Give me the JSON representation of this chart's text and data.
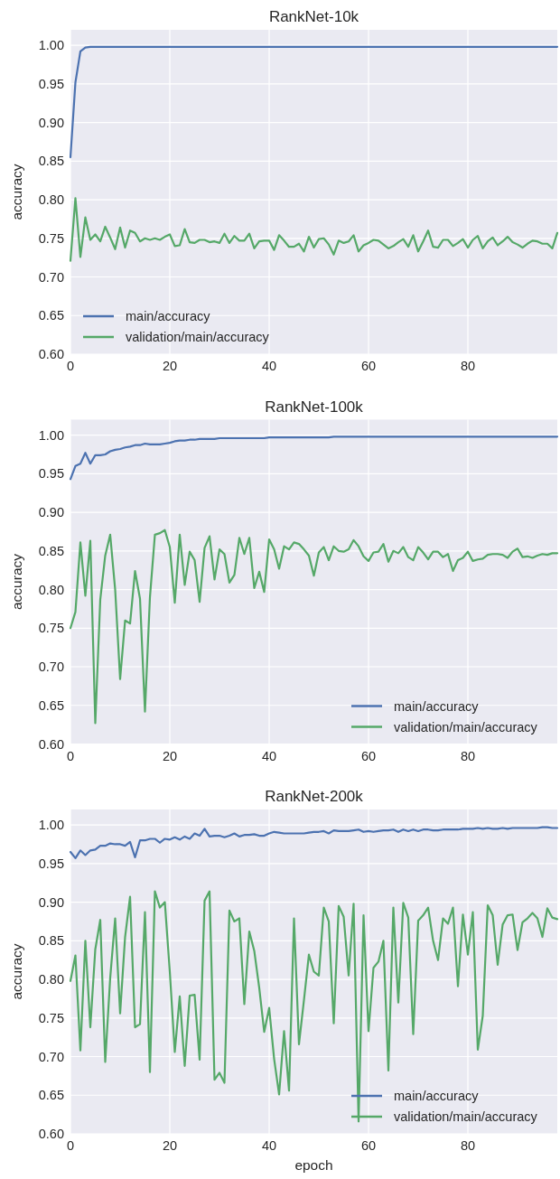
{
  "chart_data": [
    {
      "type": "line",
      "title": "RankNet-10k",
      "ylabel": "accuracy",
      "x": [
        0,
        1,
        2,
        3,
        4,
        5,
        6,
        7,
        8,
        9,
        10,
        11,
        12,
        13,
        14,
        15,
        16,
        17,
        18,
        19,
        20,
        21,
        22,
        23,
        24,
        25,
        26,
        27,
        28,
        29,
        30,
        31,
        32,
        33,
        34,
        35,
        36,
        37,
        38,
        39,
        40,
        41,
        42,
        43,
        44,
        45,
        46,
        47,
        48,
        49,
        50,
        51,
        52,
        53,
        54,
        55,
        56,
        57,
        58,
        59,
        60,
        61,
        62,
        63,
        64,
        65,
        66,
        67,
        68,
        69,
        70,
        71,
        72,
        73,
        74,
        75,
        76,
        77,
        78,
        79,
        80,
        81,
        82,
        83,
        84,
        85,
        86,
        87,
        88,
        89,
        90,
        91,
        92,
        93,
        94,
        95,
        96,
        97,
        98
      ],
      "xlim": [
        0,
        98
      ],
      "xticks": [
        0,
        20,
        40,
        60,
        80
      ],
      "ylim": [
        0.6,
        1.02
      ],
      "yticks": [
        {
          "value": 0.6,
          "label": "0.60"
        },
        {
          "value": 0.65,
          "label": "0.65"
        },
        {
          "value": 0.7,
          "label": "0.70"
        },
        {
          "value": 0.75,
          "label": "0.75"
        },
        {
          "value": 0.8,
          "label": "0.80"
        },
        {
          "value": 0.85,
          "label": "0.85"
        },
        {
          "value": 0.9,
          "label": "0.90"
        },
        {
          "value": 0.95,
          "label": "0.95"
        },
        {
          "value": 1,
          "label": "1.00"
        }
      ],
      "grid": true,
      "legend": "bottom left",
      "series": [
        {
          "name": "main/accuracy",
          "color": "#4c72b0",
          "values": [
            0.855,
            0.952,
            0.992,
            0.997,
            0.998,
            0.998,
            0.998,
            0.998,
            0.998,
            0.998,
            0.998,
            0.998,
            0.998,
            0.998,
            0.998,
            0.998,
            0.998,
            0.998,
            0.998,
            0.998,
            0.998,
            0.998,
            0.998,
            0.998,
            0.998,
            0.998,
            0.998,
            0.998,
            0.998,
            0.998,
            0.998,
            0.998,
            0.998,
            0.998,
            0.998,
            0.998,
            0.998,
            0.998,
            0.998,
            0.998,
            0.998,
            0.998,
            0.998,
            0.998,
            0.998,
            0.998,
            0.998,
            0.998,
            0.998,
            0.998,
            0.998,
            0.998,
            0.998,
            0.998,
            0.998,
            0.998,
            0.998,
            0.998,
            0.998,
            0.998,
            0.998,
            0.998,
            0.998,
            0.998,
            0.998,
            0.998,
            0.998,
            0.998,
            0.998,
            0.998,
            0.998,
            0.998,
            0.998,
            0.998,
            0.998,
            0.998,
            0.998,
            0.998,
            0.998,
            0.998,
            0.998,
            0.998,
            0.998,
            0.998,
            0.998,
            0.998,
            0.998,
            0.998,
            0.998,
            0.998,
            0.998,
            0.998,
            0.998,
            0.998,
            0.998,
            0.998,
            0.998,
            0.998,
            0.998
          ]
        },
        {
          "name": "validation/main/accuracy",
          "color": "#55a868",
          "values": [
            0.721,
            0.802,
            0.726,
            0.777,
            0.748,
            0.755,
            0.746,
            0.765,
            0.751,
            0.736,
            0.764,
            0.738,
            0.76,
            0.757,
            0.746,
            0.75,
            0.748,
            0.75,
            0.748,
            0.752,
            0.755,
            0.74,
            0.741,
            0.762,
            0.745,
            0.744,
            0.748,
            0.748,
            0.745,
            0.746,
            0.744,
            0.756,
            0.744,
            0.753,
            0.747,
            0.747,
            0.756,
            0.737,
            0.746,
            0.747,
            0.747,
            0.735,
            0.754,
            0.747,
            0.739,
            0.739,
            0.743,
            0.733,
            0.752,
            0.738,
            0.749,
            0.75,
            0.742,
            0.729,
            0.747,
            0.744,
            0.746,
            0.754,
            0.733,
            0.741,
            0.744,
            0.748,
            0.747,
            0.742,
            0.737,
            0.74,
            0.745,
            0.749,
            0.739,
            0.754,
            0.733,
            0.746,
            0.76,
            0.739,
            0.738,
            0.748,
            0.748,
            0.74,
            0.744,
            0.749,
            0.738,
            0.748,
            0.753,
            0.737,
            0.746,
            0.751,
            0.741,
            0.746,
            0.752,
            0.745,
            0.742,
            0.738,
            0.743,
            0.747,
            0.746,
            0.743,
            0.743,
            0.737,
            0.757
          ]
        }
      ]
    },
    {
      "type": "line",
      "title": "RankNet-100k",
      "ylabel": "accuracy",
      "x": [
        0,
        1,
        2,
        3,
        4,
        5,
        6,
        7,
        8,
        9,
        10,
        11,
        12,
        13,
        14,
        15,
        16,
        17,
        18,
        19,
        20,
        21,
        22,
        23,
        24,
        25,
        26,
        27,
        28,
        29,
        30,
        31,
        32,
        33,
        34,
        35,
        36,
        37,
        38,
        39,
        40,
        41,
        42,
        43,
        44,
        45,
        46,
        47,
        48,
        49,
        50,
        51,
        52,
        53,
        54,
        55,
        56,
        57,
        58,
        59,
        60,
        61,
        62,
        63,
        64,
        65,
        66,
        67,
        68,
        69,
        70,
        71,
        72,
        73,
        74,
        75,
        76,
        77,
        78,
        79,
        80,
        81,
        82,
        83,
        84,
        85,
        86,
        87,
        88,
        89,
        90,
        91,
        92,
        93,
        94,
        95,
        96,
        97,
        98
      ],
      "xlim": [
        0,
        98
      ],
      "xticks": [
        0,
        20,
        40,
        60,
        80
      ],
      "ylim": [
        0.6,
        1.02
      ],
      "yticks": [
        {
          "value": 0.6,
          "label": "0.60"
        },
        {
          "value": 0.65,
          "label": "0.65"
        },
        {
          "value": 0.7,
          "label": "0.70"
        },
        {
          "value": 0.75,
          "label": "0.75"
        },
        {
          "value": 0.8,
          "label": "0.80"
        },
        {
          "value": 0.85,
          "label": "0.85"
        },
        {
          "value": 0.9,
          "label": "0.90"
        },
        {
          "value": 0.95,
          "label": "0.95"
        },
        {
          "value": 1,
          "label": "1.00"
        }
      ],
      "grid": true,
      "legend": "bottom right",
      "series": [
        {
          "name": "main/accuracy",
          "color": "#4c72b0",
          "values": [
            0.943,
            0.96,
            0.963,
            0.977,
            0.963,
            0.974,
            0.974,
            0.975,
            0.979,
            0.981,
            0.982,
            0.984,
            0.985,
            0.987,
            0.987,
            0.989,
            0.988,
            0.988,
            0.988,
            0.989,
            0.99,
            0.992,
            0.993,
            0.993,
            0.994,
            0.994,
            0.995,
            0.995,
            0.995,
            0.995,
            0.996,
            0.996,
            0.996,
            0.996,
            0.996,
            0.996,
            0.996,
            0.996,
            0.996,
            0.996,
            0.997,
            0.997,
            0.997,
            0.997,
            0.997,
            0.997,
            0.997,
            0.997,
            0.997,
            0.997,
            0.997,
            0.997,
            0.997,
            0.998,
            0.998,
            0.998,
            0.998,
            0.998,
            0.998,
            0.998,
            0.998,
            0.998,
            0.998,
            0.998,
            0.998,
            0.998,
            0.998,
            0.998,
            0.998,
            0.998,
            0.998,
            0.998,
            0.998,
            0.998,
            0.998,
            0.998,
            0.998,
            0.998,
            0.998,
            0.998,
            0.998,
            0.998,
            0.998,
            0.998,
            0.998,
            0.998,
            0.998,
            0.998,
            0.998,
            0.998,
            0.998,
            0.998,
            0.998,
            0.998,
            0.998,
            0.998,
            0.998,
            0.998,
            0.998
          ]
        },
        {
          "name": "validation/main/accuracy",
          "color": "#55a868",
          "values": [
            0.75,
            0.771,
            0.861,
            0.792,
            0.863,
            0.627,
            0.787,
            0.844,
            0.871,
            0.8,
            0.684,
            0.76,
            0.756,
            0.824,
            0.788,
            0.642,
            0.79,
            0.871,
            0.873,
            0.877,
            0.855,
            0.783,
            0.871,
            0.806,
            0.849,
            0.838,
            0.784,
            0.854,
            0.869,
            0.813,
            0.852,
            0.846,
            0.809,
            0.819,
            0.867,
            0.846,
            0.867,
            0.802,
            0.823,
            0.797,
            0.865,
            0.852,
            0.827,
            0.856,
            0.852,
            0.861,
            0.859,
            0.852,
            0.844,
            0.818,
            0.848,
            0.855,
            0.838,
            0.856,
            0.85,
            0.849,
            0.852,
            0.864,
            0.856,
            0.843,
            0.837,
            0.848,
            0.849,
            0.859,
            0.836,
            0.85,
            0.847,
            0.855,
            0.842,
            0.838,
            0.855,
            0.848,
            0.839,
            0.849,
            0.849,
            0.842,
            0.846,
            0.824,
            0.838,
            0.841,
            0.849,
            0.837,
            0.839,
            0.84,
            0.845,
            0.846,
            0.846,
            0.845,
            0.841,
            0.849,
            0.853,
            0.842,
            0.843,
            0.841,
            0.844,
            0.846,
            0.845,
            0.847,
            0.847
          ]
        }
      ]
    },
    {
      "type": "line",
      "title": "RankNet-200k",
      "xlabel": "epoch",
      "ylabel": "accuracy",
      "x": [
        0,
        1,
        2,
        3,
        4,
        5,
        6,
        7,
        8,
        9,
        10,
        11,
        12,
        13,
        14,
        15,
        16,
        17,
        18,
        19,
        20,
        21,
        22,
        23,
        24,
        25,
        26,
        27,
        28,
        29,
        30,
        31,
        32,
        33,
        34,
        35,
        36,
        37,
        38,
        39,
        40,
        41,
        42,
        43,
        44,
        45,
        46,
        47,
        48,
        49,
        50,
        51,
        52,
        53,
        54,
        55,
        56,
        57,
        58,
        59,
        60,
        61,
        62,
        63,
        64,
        65,
        66,
        67,
        68,
        69,
        70,
        71,
        72,
        73,
        74,
        75,
        76,
        77,
        78,
        79,
        80,
        81,
        82,
        83,
        84,
        85,
        86,
        87,
        88,
        89,
        90,
        91,
        92,
        93,
        94,
        95,
        96,
        97,
        98
      ],
      "xlim": [
        0,
        98
      ],
      "xticks": [
        0,
        20,
        40,
        60,
        80
      ],
      "ylim": [
        0.6,
        1.02
      ],
      "yticks": [
        {
          "value": 0.6,
          "label": "0.60"
        },
        {
          "value": 0.65,
          "label": "0.65"
        },
        {
          "value": 0.7,
          "label": "0.70"
        },
        {
          "value": 0.75,
          "label": "0.75"
        },
        {
          "value": 0.8,
          "label": "0.80"
        },
        {
          "value": 0.85,
          "label": "0.85"
        },
        {
          "value": 0.9,
          "label": "0.90"
        },
        {
          "value": 0.95,
          "label": "0.95"
        },
        {
          "value": 1,
          "label": "1.00"
        }
      ],
      "grid": true,
      "legend": "bottom right",
      "series": [
        {
          "name": "main/accuracy",
          "color": "#4c72b0",
          "values": [
            0.965,
            0.957,
            0.967,
            0.961,
            0.967,
            0.968,
            0.973,
            0.973,
            0.976,
            0.975,
            0.975,
            0.973,
            0.978,
            0.958,
            0.98,
            0.98,
            0.982,
            0.982,
            0.977,
            0.982,
            0.981,
            0.984,
            0.981,
            0.985,
            0.982,
            0.989,
            0.986,
            0.995,
            0.985,
            0.986,
            0.986,
            0.984,
            0.986,
            0.989,
            0.985,
            0.987,
            0.987,
            0.988,
            0.986,
            0.986,
            0.989,
            0.991,
            0.99,
            0.989,
            0.989,
            0.989,
            0.989,
            0.989,
            0.99,
            0.991,
            0.991,
            0.992,
            0.989,
            0.993,
            0.992,
            0.992,
            0.992,
            0.993,
            0.994,
            0.991,
            0.992,
            0.991,
            0.992,
            0.993,
            0.993,
            0.994,
            0.991,
            0.994,
            0.992,
            0.994,
            0.992,
            0.994,
            0.994,
            0.993,
            0.993,
            0.994,
            0.994,
            0.994,
            0.994,
            0.995,
            0.995,
            0.995,
            0.996,
            0.995,
            0.996,
            0.995,
            0.995,
            0.996,
            0.995,
            0.996,
            0.996,
            0.996,
            0.996,
            0.996,
            0.996,
            0.997,
            0.997,
            0.996,
            0.996
          ]
        },
        {
          "name": "validation/main/accuracy",
          "color": "#55a868",
          "values": [
            0.798,
            0.831,
            0.708,
            0.85,
            0.738,
            0.839,
            0.877,
            0.693,
            0.802,
            0.879,
            0.756,
            0.855,
            0.907,
            0.738,
            0.742,
            0.887,
            0.68,
            0.914,
            0.893,
            0.9,
            0.81,
            0.706,
            0.778,
            0.688,
            0.779,
            0.78,
            0.696,
            0.902,
            0.914,
            0.67,
            0.679,
            0.666,
            0.889,
            0.875,
            0.879,
            0.768,
            0.862,
            0.837,
            0.789,
            0.732,
            0.763,
            0.697,
            0.651,
            0.733,
            0.656,
            0.879,
            0.716,
            0.773,
            0.832,
            0.81,
            0.805,
            0.893,
            0.875,
            0.743,
            0.895,
            0.881,
            0.805,
            0.898,
            0.616,
            0.883,
            0.733,
            0.815,
            0.823,
            0.85,
            0.682,
            0.893,
            0.77,
            0.899,
            0.88,
            0.729,
            0.876,
            0.883,
            0.893,
            0.85,
            0.825,
            0.879,
            0.872,
            0.893,
            0.791,
            0.884,
            0.832,
            0.887,
            0.709,
            0.753,
            0.896,
            0.883,
            0.819,
            0.871,
            0.883,
            0.884,
            0.838,
            0.874,
            0.879,
            0.886,
            0.879,
            0.855,
            0.892,
            0.88,
            0.878
          ]
        }
      ]
    }
  ]
}
